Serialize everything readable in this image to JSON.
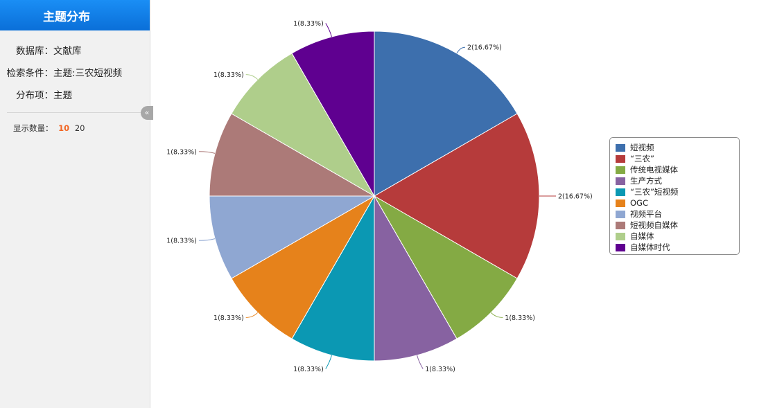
{
  "sidebar": {
    "title": "主题分布",
    "database_label": "数据库：",
    "database_value": "文献库",
    "criteria_label": "检索条件：",
    "criteria_value": "主题:三农短视频",
    "dimension_label": "分布项：",
    "dimension_value": "主题",
    "count_label": "显示数量：",
    "count_options": [
      "10",
      "20"
    ],
    "count_selected": "10",
    "collapse_glyph": "«"
  },
  "chart_data": {
    "type": "pie",
    "title": "",
    "categories": [
      "短视频",
      "“三农”",
      "传统电视媒体",
      "生产方式",
      "“三农”短视频",
      "OGC",
      "视频平台",
      "短视频自媒体",
      "自媒体",
      "自媒体时代"
    ],
    "values": [
      2,
      2,
      1,
      1,
      1,
      1,
      1,
      1,
      1,
      1
    ],
    "data_labels": [
      "2(16.67%)",
      "2(16.67%)",
      "1(8.33%)",
      "1(8.33%)",
      "1(8.33%)",
      "1(8.33%)",
      "1(8.33%)",
      "1(8.33%)",
      "1(8.33%)",
      "1(8.33%)"
    ],
    "colors": [
      "#3d6fad",
      "#b63b3b",
      "#84aa44",
      "#8762a1",
      "#0b98b3",
      "#e6821b",
      "#8fa7d2",
      "#ac7a78",
      "#afce8b",
      "#5f0090"
    ],
    "start_angle_deg": 0,
    "direction": "clockwise",
    "legend_position": "right"
  }
}
